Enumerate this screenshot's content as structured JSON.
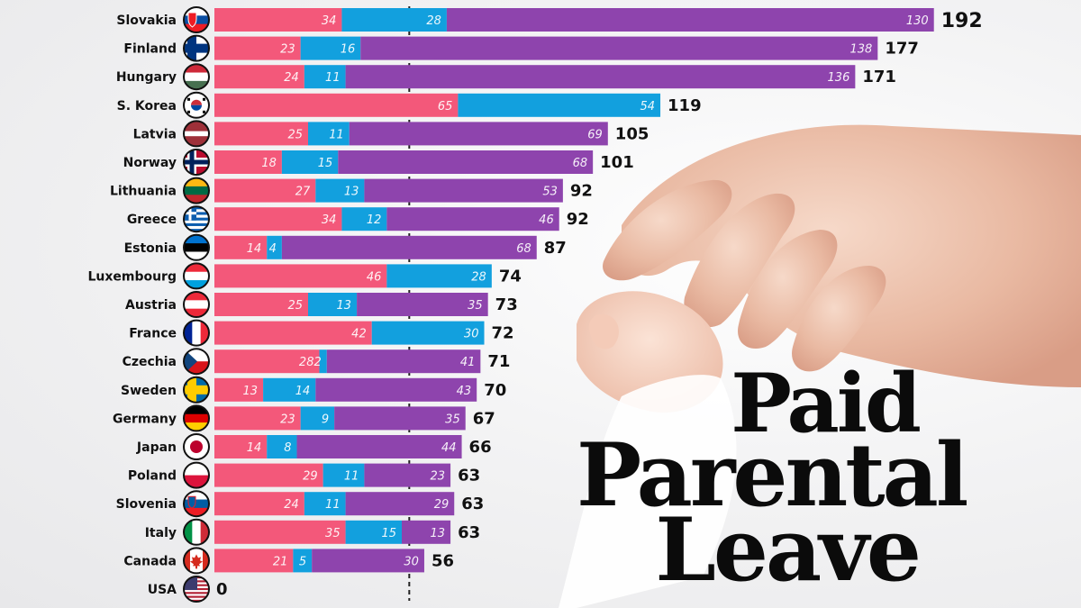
{
  "title": {
    "line1": "Paid",
    "line2": "Parental",
    "line3": "Leave"
  },
  "colors": {
    "maternity": "#f3587a",
    "paternity": "#12a0de",
    "parental": "#8e44ad",
    "value_text": "#111111",
    "label_text": "#111111"
  },
  "chart_data": {
    "type": "bar",
    "stacked": true,
    "orientation": "horizontal",
    "title": "Paid Parental Leave",
    "categories": [
      "Slovakia",
      "Finland",
      "Hungary",
      "S. Korea",
      "Latvia",
      "Norway",
      "Lithuania",
      "Greece",
      "Estonia",
      "Luxembourg",
      "Austria",
      "France",
      "Czechia",
      "Sweden",
      "Germany",
      "Japan",
      "Poland",
      "Slovenia",
      "Italy",
      "Canada",
      "USA"
    ],
    "flags": [
      "slovakia-flag-icon",
      "finland-flag-icon",
      "hungary-flag-icon",
      "south-korea-flag-icon",
      "latvia-flag-icon",
      "norway-flag-icon",
      "lithuania-flag-icon",
      "greece-flag-icon",
      "estonia-flag-icon",
      "luxembourg-flag-icon",
      "austria-flag-icon",
      "france-flag-icon",
      "czechia-flag-icon",
      "sweden-flag-icon",
      "germany-flag-icon",
      "japan-flag-icon",
      "poland-flag-icon",
      "slovenia-flag-icon",
      "italy-flag-icon",
      "canada-flag-icon",
      "usa-flag-icon"
    ],
    "series": [
      {
        "color": "#f3587a",
        "values": [
          34,
          23,
          24,
          65,
          25,
          18,
          27,
          34,
          14,
          46,
          25,
          42,
          28,
          13,
          23,
          14,
          29,
          24,
          35,
          21,
          0
        ]
      },
      {
        "color": "#12a0de",
        "values": [
          28,
          16,
          11,
          54,
          11,
          15,
          13,
          12,
          4,
          28,
          13,
          30,
          2,
          14,
          9,
          8,
          11,
          11,
          15,
          5,
          0
        ]
      },
      {
        "color": "#8e44ad",
        "values": [
          130,
          138,
          136,
          0,
          69,
          68,
          53,
          46,
          68,
          0,
          35,
          0,
          41,
          43,
          35,
          44,
          23,
          29,
          13,
          30,
          0
        ]
      }
    ],
    "totals": [
      192,
      177,
      171,
      119,
      105,
      101,
      92,
      92,
      87,
      74,
      73,
      72,
      71,
      70,
      67,
      66,
      63,
      63,
      63,
      56,
      0
    ],
    "reference_line_x": 52,
    "xlim": [
      0,
      200
    ]
  }
}
